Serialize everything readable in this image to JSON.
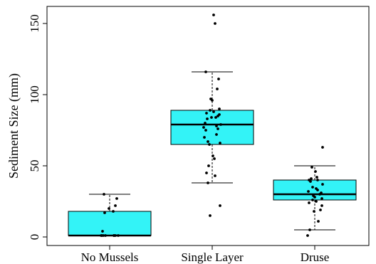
{
  "chart_data": {
    "type": "box",
    "title": "",
    "xlabel": "",
    "ylabel": "Sediment Size (mm)",
    "ylim": [
      -6,
      162
    ],
    "yticks": [
      0,
      50,
      100,
      150
    ],
    "grid": false,
    "legend": "none",
    "box_color": "#33F3F7",
    "categories": [
      "No Mussels",
      "Single Layer",
      "Druse"
    ],
    "boxes": [
      {
        "category": "No Mussels",
        "whisker_low": 1,
        "q1": 1,
        "median": 1,
        "q3": 18,
        "whisker_high": 30,
        "points": [
          30,
          27,
          22,
          20,
          18,
          17,
          4,
          1,
          1,
          1,
          1,
          1,
          1,
          1,
          1
        ]
      },
      {
        "category": "Single Layer",
        "whisker_low": 38,
        "q1": 65,
        "median": 79,
        "q3": 89,
        "whisker_high": 116,
        "points": [
          156,
          150,
          116,
          111,
          104,
          97,
          96,
          90,
          89,
          88,
          87,
          86,
          85,
          84,
          84,
          83,
          80,
          79,
          78,
          77,
          76,
          75,
          72,
          70,
          67,
          66,
          65,
          57,
          55,
          50,
          45,
          43,
          38,
          22,
          15
        ]
      },
      {
        "category": "Druse",
        "whisker_low": 5,
        "q1": 26,
        "median": 30,
        "q3": 40,
        "whisker_high": 50,
        "points": [
          63,
          49,
          46,
          42,
          41,
          40,
          40,
          39,
          37,
          35,
          34,
          33,
          32,
          31,
          30,
          29,
          28,
          27,
          26,
          25,
          24,
          22,
          19,
          18,
          11,
          5,
          1
        ]
      }
    ]
  }
}
